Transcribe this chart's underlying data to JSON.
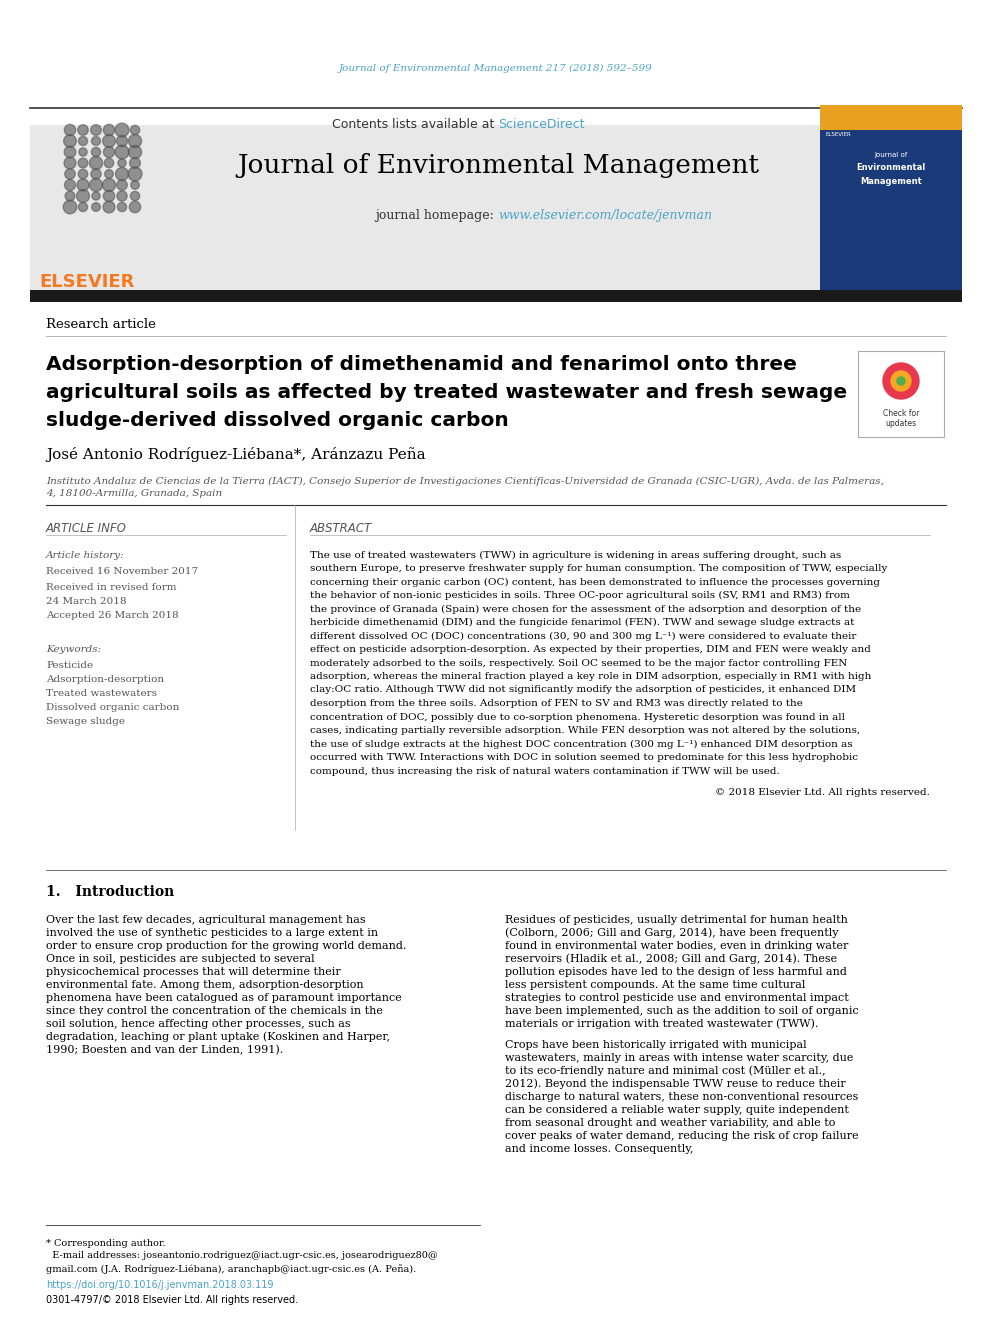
{
  "bg_color": "#ffffff",
  "top_citation": "Journal of Environmental Management 217 (2018) 592–599",
  "top_citation_color": "#4aa3c8",
  "header_bg": "#e8e8e8",
  "header_border_color": "#222222",
  "contents_text": "Contents lists available at ",
  "sciencedirect_text": "ScienceDirect",
  "sciencedirect_color": "#4aa3c8",
  "journal_title": "Journal of Environmental Management",
  "journal_title_color": "#000000",
  "homepage_label": "journal homepage: ",
  "homepage_url": "www.elsevier.com/locate/jenvman",
  "homepage_url_color": "#4aa3c8",
  "dark_bar_color": "#1a1a1a",
  "article_type": "Research article",
  "paper_title_line1": "Adsorption-desorption of dimethenamid and fenarimol onto three",
  "paper_title_line2": "agricultural soils as affected by treated wastewater and fresh sewage",
  "paper_title_line3": "sludge-derived dissolved organic carbon",
  "paper_title_color": "#000000",
  "authors": "José Antonio Rodríguez-Liébana*, Aránzazu Peña",
  "authors_color": "#000000",
  "affiliation": "Instituto Andaluz de Ciencias de la Tierra (IACT), Consejo Superior de Investigaciones Científicas-Universidad de Granada (CSIC-UGR), Avda. de las Palmeras,\n4, 18100-Armilla, Granada, Spain",
  "affiliation_color": "#555555",
  "article_info_title": "ARTICLE INFO",
  "article_history_title": "Article history:",
  "received_line1": "Received 16 November 2017",
  "received_line2": "Received in revised form",
  "received_line3": "24 March 2018",
  "accepted_line": "Accepted 26 March 2018",
  "keywords_title": "Keywords:",
  "keyword1": "Pesticide",
  "keyword2": "Adsorption-desorption",
  "keyword3": "Treated wastewaters",
  "keyword4": "Dissolved organic carbon",
  "keyword5": "Sewage sludge",
  "abstract_title": "ABSTRACT",
  "abstract_text": "The use of treated wastewaters (TWW) in agriculture is widening in areas suffering drought, such as southern Europe, to preserve freshwater supply for human consumption. The composition of TWW, especially concerning their organic carbon (OC) content, has been demonstrated to influence the processes governing the behavior of non-ionic pesticides in soils. Three OC-poor agricultural soils (SV, RM1 and RM3) from the province of Granada (Spain) were chosen for the assessment of the adsorption and desorption of the herbicide dimethenamid (DIM) and the fungicide fenarimol (FEN). TWW and sewage sludge extracts at different dissolved OC (DOC) concentrations (30, 90 and 300 mg L⁻¹) were considered to evaluate their effect on pesticide adsorption-desorption. As expected by their properties, DIM and FEN were weakly and moderately adsorbed to the soils, respectively. Soil OC seemed to be the major factor controlling FEN adsorption, whereas the mineral fraction played a key role in DIM adsorption, especially in RM1 with high clay:OC ratio. Although TWW did not significantly modify the adsorption of pesticides, it enhanced DIM desorption from the three soils. Adsorption of FEN to SV and RM3 was directly related to the concentration of DOC, possibly due to co-sorption phenomena. Hysteretic desorption was found in all cases, indicating partially reversible adsorption. While FEN desorption was not altered by the solutions, the use of sludge extracts at the highest DOC concentration (300 mg L⁻¹) enhanced DIM desorption as occurred with TWW. Interactions with DOC in solution seemed to predominate for this less hydrophobic compound, thus increasing the risk of natural waters contamination if TWW will be used.",
  "copyright_text": "© 2018 Elsevier Ltd. All rights reserved.",
  "intro_title": "1.   Introduction",
  "intro_col1_para1": "Over the last few decades, agricultural management has involved the use of synthetic pesticides to a large extent in order to ensure crop production for the growing world demand. Once in soil, pesticides are subjected to several physicochemical processes that will determine their environmental fate. Among them, adsorption-desorption phenomena have been catalogued as of paramount importance since they control the concentration of the chemicals in the soil solution, hence affecting other processes, such as degradation, leaching or plant uptake (Koskinen and Harper, 1990; Boesten and van der Linden, 1991).",
  "intro_col1_ref1": "Koskinen and Harper, 1990",
  "intro_col1_ref2": "Boesten and van der Linden, 1991",
  "intro_col2_para1": "Residues of pesticides, usually detrimental for human health (Colborn, 2006; Gill and Garg, 2014), have been frequently found in environmental water bodies, even in drinking water reservoirs (Hladik et al., 2008; Gill and Garg, 2014). These pollution episodes have led to the design of less harmful and less persistent compounds. At the same time cultural strategies to control pesticide use and environmental impact have been implemented, such as the addition to soil of organic materials or irrigation with treated wastewater (TWW).",
  "intro_col2_para2": "Crops have been historically irrigated with municipal wastewaters, mainly in areas with intense water scarcity, due to its eco-friendly nature and minimal cost (Müller et al., 2012). Beyond the indispensable TWW reuse to reduce their discharge to natural waters, these non-conventional resources can be considered a reliable water supply, quite independent from seasonal drought and weather variability, and able to cover peaks of water demand, reducing the risk of crop failure and income losses. Consequently,",
  "footnote_text": "* Corresponding author.\n  E-mail addresses: joseantonio.rodriguez@iact.ugr-csic.es, josearodriguez80@\ngmail.com (J.A. Rodríguez-Liébana), aranchapb@iact.ugr-csic.es (A. Peña).",
  "doi_text": "https://doi.org/10.1016/j.jenvman.2018.03.119",
  "doi_color": "#4aa3c8",
  "issn_text": "0301-4797/© 2018 Elsevier Ltd. All rights reserved.",
  "elsevier_color": "#f47920",
  "elsevier_text": "ELSEVIER"
}
